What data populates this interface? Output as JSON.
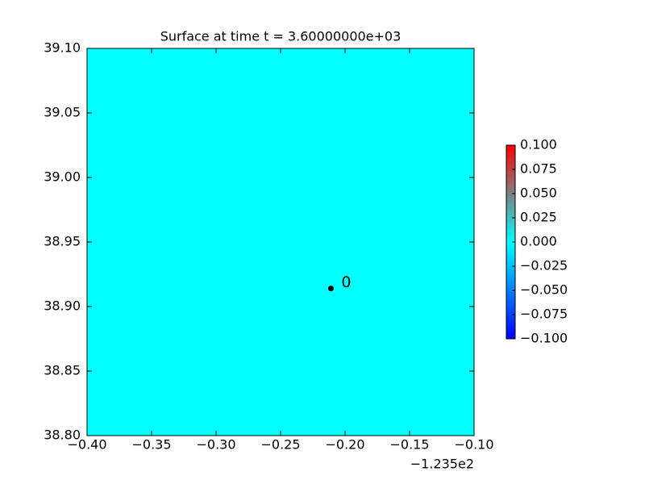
{
  "chart_data": {
    "type": "scatter",
    "title": "Surface at time t = 3.60000000e+03",
    "field_color": "#00ffff",
    "xlim": [
      -0.4,
      -0.1
    ],
    "xticks": [
      {
        "value": -0.4,
        "label": "−0.40"
      },
      {
        "value": -0.35,
        "label": "−0.35"
      },
      {
        "value": -0.3,
        "label": "−0.30"
      },
      {
        "value": -0.25,
        "label": "−0.25"
      },
      {
        "value": -0.2,
        "label": "−0.20"
      },
      {
        "value": -0.15,
        "label": "−0.15"
      },
      {
        "value": -0.1,
        "label": "−0.10"
      }
    ],
    "x_offset_label": "−1.235e2",
    "ylim": [
      38.8,
      39.1
    ],
    "yticks": [
      {
        "value": 38.8,
        "label": "38.80"
      },
      38.85,
      {
        "value": 38.9,
        "label": "38.90"
      },
      38.95,
      {
        "value": 39,
        "label": "39.00"
      },
      39.05,
      {
        "value": 39.1,
        "label": "39.10"
      }
    ],
    "series": [
      {
        "color": "#000000",
        "x": [
          -0.211
        ],
        "values": [
          38.914
        ],
        "labels": [
          "0"
        ]
      }
    ],
    "colorbar": {
      "lim": [
        -0.1,
        0.1
      ],
      "colors": [
        "#0000ff",
        "#00ffff",
        "#ff0000"
      ],
      "ticks": [
        {
          "value": 0.1,
          "label": "0.100"
        },
        {
          "value": 0.075,
          "label": "0.075"
        },
        {
          "value": 0.05,
          "label": "0.050"
        },
        {
          "value": 0.025,
          "label": "0.025"
        },
        {
          "value": 0,
          "label": "0.000"
        },
        {
          "value": -0.025,
          "label": "−0.025"
        },
        {
          "value": -0.05,
          "label": "−0.050"
        },
        {
          "value": -0.075,
          "label": "−0.075"
        },
        {
          "value": -0.1,
          "label": "−0.100"
        }
      ]
    }
  }
}
